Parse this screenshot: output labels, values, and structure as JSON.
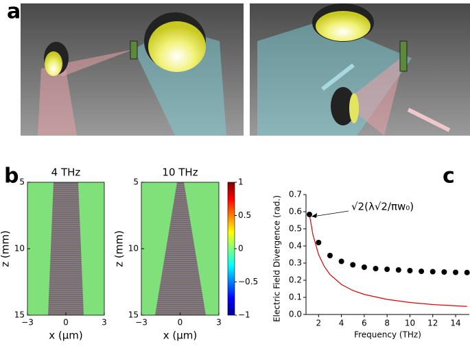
{
  "panel_labels": [
    "a",
    "b",
    "c"
  ],
  "chart_data": [
    {
      "type": "heatmap",
      "title": "4 THz",
      "xlabel": "x (µm)",
      "ylabel": "z (mm)",
      "xlim": [
        -3,
        3
      ],
      "xticks": [
        {
          "value": -3,
          "label": "−3"
        },
        0,
        3
      ],
      "ylim": [
        15,
        5
      ],
      "yticks": [
        5,
        10,
        15
      ]
    },
    {
      "type": "heatmap",
      "title": "10 THz",
      "xlabel": "x (µm)",
      "ylabel": "z (mm)",
      "xlim": [
        -3,
        3
      ],
      "xticks": [
        {
          "value": -3,
          "label": "−3"
        },
        0,
        3
      ],
      "ylim": [
        15,
        5
      ],
      "yticks": [
        5,
        10,
        15
      ],
      "colorbar": {
        "lim": [
          -1,
          1
        ],
        "ticks": [
          {
            "value": -1,
            "label": "−1"
          },
          {
            "value": -0.5,
            "label": "−0.5"
          },
          0,
          0.5,
          1
        ]
      }
    },
    {
      "type": "scatter",
      "xlabel": "Frequency (THz)",
      "ylabel": "Electric Field Divergence  (rad.)",
      "annotation": "√2(λ√2/πw₀)",
      "xlim": [
        0.9,
        15.2
      ],
      "xticks": [
        2,
        4,
        6,
        8,
        10,
        12,
        14
      ],
      "ylim": [
        0,
        0.7
      ],
      "yticks": [
        {
          "value": 0,
          "label": "0.0"
        },
        0.1,
        0.2,
        0.3,
        0.4,
        0.5,
        0.6,
        0.7
      ],
      "series": [
        {
          "color": "#e00000",
          "marker": "line",
          "x": [
            1.2,
            1.5,
            2,
            2.5,
            3,
            4,
            5,
            6,
            8,
            10,
            12,
            15
          ],
          "values": [
            0.583,
            0.467,
            0.35,
            0.28,
            0.233,
            0.175,
            0.14,
            0.117,
            0.088,
            0.07,
            0.058,
            0.047
          ]
        },
        {
          "color": "#000000",
          "marker": "circle",
          "x": [
            1.2,
            2,
            3,
            4,
            5,
            6,
            7,
            8,
            9,
            10,
            11,
            12,
            13,
            14,
            15
          ],
          "values": [
            0.584,
            0.42,
            0.344,
            0.31,
            0.29,
            0.276,
            0.268,
            0.264,
            0.26,
            0.256,
            0.252,
            0.25,
            0.248,
            0.246,
            0.245
          ]
        }
      ]
    }
  ]
}
